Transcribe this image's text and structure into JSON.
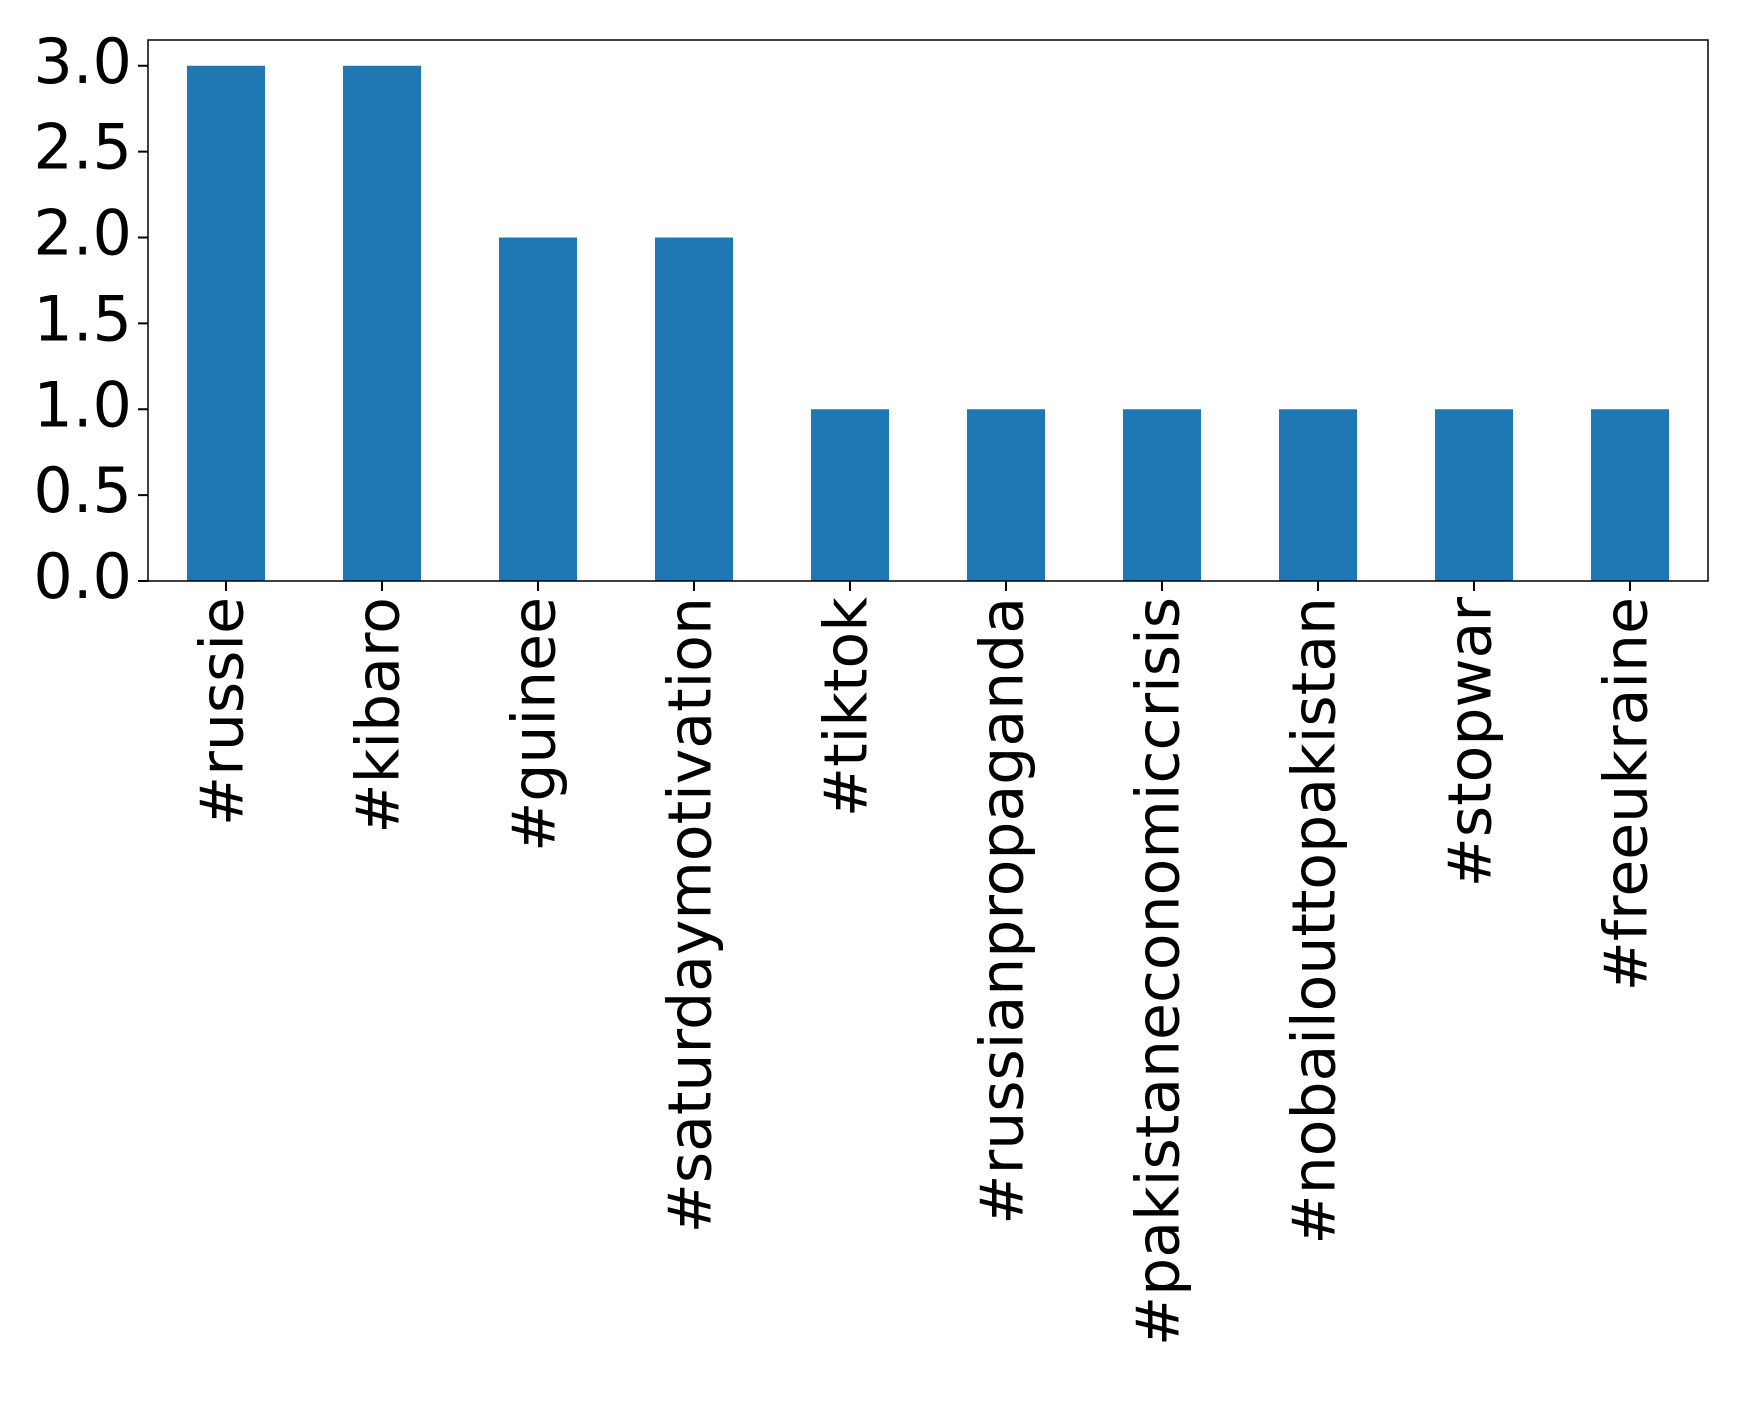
{
  "chart_data": {
    "type": "bar",
    "categories": [
      "#russie",
      "#kibaro",
      "#guinee",
      "#saturdaymotivation",
      "#tiktok",
      "#russianpropaganda",
      "#pakistaneconomiccrisis",
      "#nobailouttopakistan",
      "#stopwar",
      "#freeukraine"
    ],
    "values": [
      3,
      3,
      2,
      2,
      1,
      1,
      1,
      1,
      1,
      1
    ],
    "color": "#1f77b4",
    "ylim": [
      0,
      3.15
    ],
    "yticks": [
      {
        "value": 0,
        "label": "0.0"
      },
      0.5,
      {
        "value": 1,
        "label": "1.0"
      },
      1.5,
      {
        "value": 2,
        "label": "2.0"
      },
      2.5,
      {
        "value": 3,
        "label": "3.0"
      }
    ],
    "grid": false
  }
}
